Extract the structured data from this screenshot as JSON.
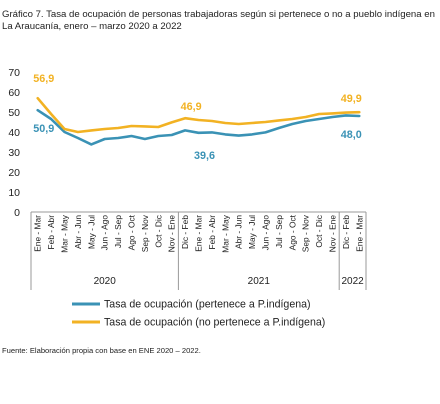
{
  "title": "Gráfico 7. Tasa de ocupación de personas trabajadoras según si pertenece o no a pueblo indígena en La Araucanía, enero – marzo 2020 a 2022",
  "source": "Fuente: Elaboración propia con base en ENE 2020 – 2022.",
  "colors": {
    "indigena": "#3a92b5",
    "no_indigena": "#f2b223",
    "axis": "#999999"
  },
  "chart_data": {
    "type": "line",
    "title": "Gráfico 7. Tasa de ocupación de personas trabajadoras según si pertenece o no a pueblo indígena en La Araucanía, enero – marzo 2020 a 2022",
    "xlabel": "",
    "ylabel": "",
    "ylim": [
      0,
      70
    ],
    "yticks": [
      0,
      10,
      20,
      30,
      40,
      50,
      60,
      70
    ],
    "grid": false,
    "legend_position": "bottom",
    "categories": [
      "Ene - Mar",
      "Feb - Abr",
      "Mar - May",
      "Abr - Jun",
      "May - Jul",
      "Jun - Ago",
      "Jul - Sep",
      "Ago - Oct",
      "Sep - Nov",
      "Oct - Dic",
      "Nov - Ene",
      "Dic - Feb",
      "Ene - Mar",
      "Feb - Abr",
      "Mar - May",
      "Abr - Jun",
      "May - Jul",
      "Jun - Ago",
      "Jul - Sep",
      "Ago - Oct",
      "Sep - Nov",
      "Oct - Dic",
      "Nov - Ene",
      "Dic - Feb",
      "Ene - Mar"
    ],
    "year_groups": [
      {
        "label": "2020",
        "start": 0,
        "end": 10
      },
      {
        "label": "2021",
        "start": 11,
        "end": 22
      },
      {
        "label": "2022",
        "start": 23,
        "end": 24
      }
    ],
    "series": [
      {
        "name": "Tasa de ocupación (pertenece a P.indígena)",
        "color": "#3a92b5",
        "values": [
          50.9,
          46.5,
          40.0,
          37.0,
          33.8,
          36.5,
          37.0,
          38.0,
          36.5,
          38.0,
          38.5,
          40.8,
          39.6,
          39.8,
          38.8,
          38.2,
          38.8,
          39.8,
          42.0,
          44.0,
          45.5,
          46.5,
          47.5,
          48.3,
          48.0
        ]
      },
      {
        "name": "Tasa de ocupación (no pertenece a P.indígena)",
        "color": "#f2b223",
        "values": [
          56.9,
          49.0,
          41.5,
          40.0,
          40.8,
          41.5,
          42.0,
          43.0,
          42.8,
          42.5,
          44.8,
          46.9,
          46.0,
          45.5,
          44.5,
          44.0,
          44.5,
          45.0,
          45.8,
          46.5,
          47.5,
          49.0,
          49.3,
          49.7,
          49.9
        ]
      }
    ],
    "annotations": [
      {
        "series": 1,
        "index": 0,
        "text": "56,9"
      },
      {
        "series": 0,
        "index": 0,
        "text": "50,9"
      },
      {
        "series": 1,
        "index": 11,
        "text": "46,9"
      },
      {
        "series": 0,
        "index": 12,
        "text": "39,6"
      },
      {
        "series": 1,
        "index": 24,
        "text": "49,9"
      },
      {
        "series": 0,
        "index": 24,
        "text": "48,0"
      }
    ]
  }
}
